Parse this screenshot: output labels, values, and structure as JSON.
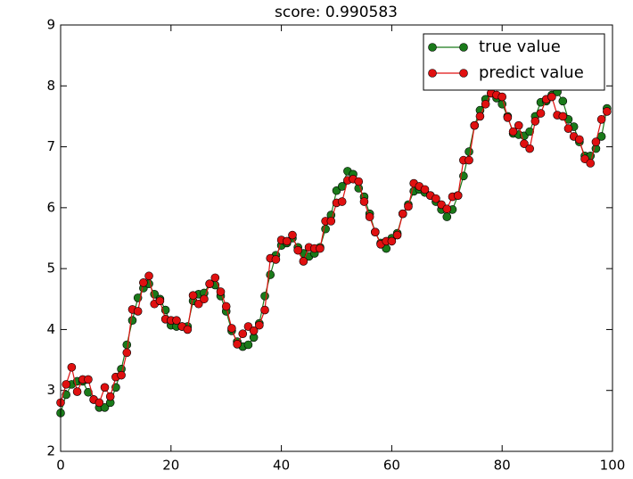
{
  "chart_data": {
    "type": "line",
    "title": "score: 0.990583",
    "x": [
      0,
      1,
      2,
      3,
      4,
      5,
      6,
      7,
      8,
      9,
      10,
      11,
      12,
      13,
      14,
      15,
      16,
      17,
      18,
      19,
      20,
      21,
      22,
      23,
      24,
      25,
      26,
      27,
      28,
      29,
      30,
      31,
      32,
      33,
      34,
      35,
      36,
      37,
      38,
      39,
      40,
      41,
      42,
      43,
      44,
      45,
      46,
      47,
      48,
      49,
      50,
      51,
      52,
      53,
      54,
      55,
      56,
      57,
      58,
      59,
      60,
      61,
      62,
      63,
      64,
      65,
      66,
      67,
      68,
      69,
      70,
      71,
      72,
      73,
      74,
      75,
      76,
      77,
      78,
      79,
      80,
      81,
      82,
      83,
      84,
      85,
      86,
      87,
      88,
      89,
      90,
      91,
      92,
      93,
      94,
      95,
      96,
      97,
      98,
      99
    ],
    "series": [
      {
        "name": "true value",
        "color": "#1a7a1a",
        "values": [
          2.63,
          2.93,
          3.1,
          3.15,
          3.15,
          2.97,
          2.85,
          2.72,
          2.72,
          2.8,
          3.05,
          3.35,
          3.75,
          4.15,
          4.52,
          4.68,
          4.75,
          4.58,
          4.5,
          4.32,
          4.07,
          4.05,
          4.05,
          4.05,
          4.47,
          4.58,
          4.6,
          4.75,
          4.73,
          4.55,
          4.3,
          3.98,
          3.8,
          3.72,
          3.75,
          3.87,
          4.1,
          4.55,
          4.9,
          5.22,
          5.38,
          5.42,
          5.5,
          5.35,
          5.25,
          5.2,
          5.25,
          5.35,
          5.65,
          5.88,
          6.28,
          6.35,
          6.6,
          6.55,
          6.32,
          6.18,
          5.9,
          5.6,
          5.42,
          5.33,
          5.5,
          5.58,
          5.9,
          6.05,
          6.27,
          6.3,
          6.25,
          6.2,
          6.1,
          5.97,
          5.85,
          5.97,
          6.2,
          6.52,
          6.92,
          7.35,
          7.6,
          7.78,
          7.88,
          7.8,
          7.7,
          7.5,
          7.22,
          7.2,
          7.18,
          7.25,
          7.5,
          7.73,
          7.75,
          7.85,
          7.9,
          7.75,
          7.45,
          7.33,
          7.08,
          6.85,
          6.85,
          6.97,
          7.17,
          7.63
        ]
      },
      {
        "name": "predict value",
        "color": "#e01010",
        "values": [
          2.8,
          3.1,
          3.38,
          2.98,
          3.18,
          3.18,
          2.85,
          2.8,
          3.05,
          2.9,
          3.22,
          3.25,
          3.62,
          4.33,
          4.3,
          4.77,
          4.88,
          4.42,
          4.47,
          4.17,
          4.15,
          4.15,
          4.05,
          4.0,
          4.56,
          4.42,
          4.5,
          4.75,
          4.85,
          4.62,
          4.38,
          4.02,
          3.76,
          3.93,
          4.05,
          3.98,
          4.07,
          4.32,
          5.17,
          5.15,
          5.47,
          5.45,
          5.55,
          5.3,
          5.12,
          5.35,
          5.33,
          5.33,
          5.78,
          5.78,
          6.08,
          6.1,
          6.45,
          6.47,
          6.43,
          6.1,
          5.85,
          5.6,
          5.4,
          5.45,
          5.45,
          5.55,
          5.9,
          6.02,
          6.4,
          6.35,
          6.3,
          6.2,
          6.15,
          6.05,
          5.98,
          6.18,
          6.2,
          6.78,
          6.78,
          7.35,
          7.5,
          7.7,
          7.88,
          7.85,
          7.82,
          7.48,
          7.25,
          7.35,
          7.05,
          6.97,
          7.42,
          7.55,
          7.78,
          7.82,
          7.52,
          7.5,
          7.3,
          7.17,
          7.12,
          6.8,
          6.73,
          7.08,
          7.45,
          7.58
        ]
      }
    ],
    "xlim": [
      0,
      100
    ],
    "xticks": [
      0,
      20,
      40,
      60,
      80,
      100
    ],
    "ylim": [
      2,
      9
    ],
    "yticks": [
      2,
      3,
      4,
      5,
      6,
      7,
      8,
      9
    ],
    "legend": "upper right",
    "grid": false
  }
}
